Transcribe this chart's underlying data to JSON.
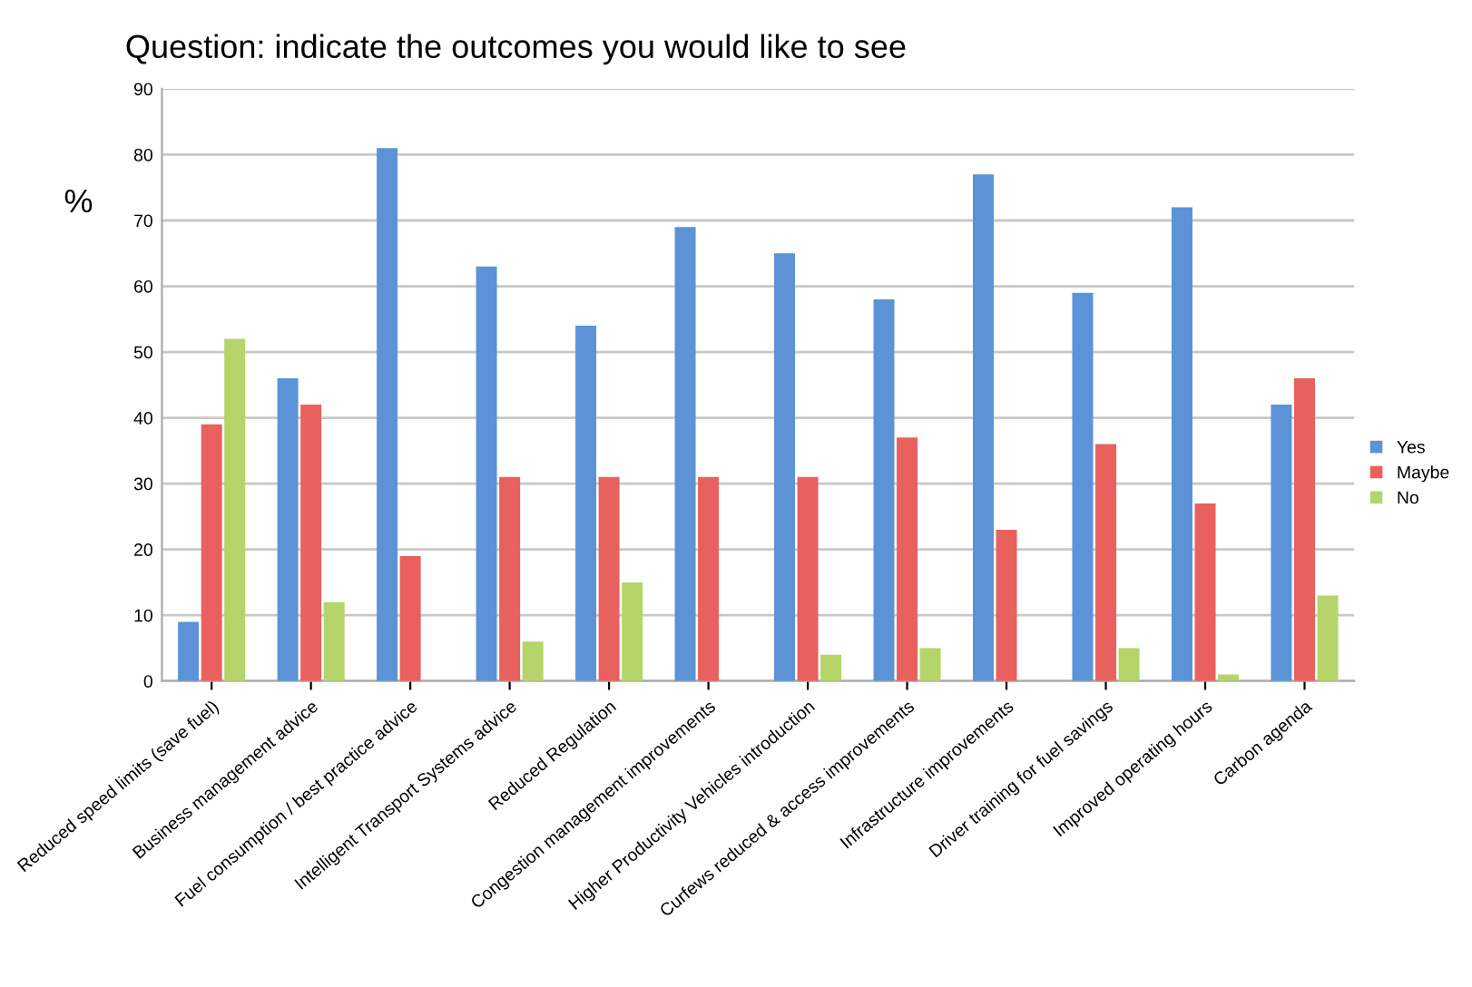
{
  "chart_data": {
    "type": "bar",
    "title": "Question: indicate the outcomes you would like to see",
    "ylabel": "%",
    "categories": [
      "Reduced speed limits (save fuel)",
      "Business management advice",
      "Fuel consumption / best practice advice",
      "Intelligent Transport Systems advice",
      "Reduced Regulation",
      "Congestion management improvements",
      "Higher Productivity Vehicles introduction",
      "Curfews reduced & access improvements",
      "Infrastructure improvements",
      "Driver training for fuel savings",
      "Improved operating hours",
      "Carbon agenda"
    ],
    "series": [
      {
        "name": "Yes",
        "color": "#5b93d6",
        "values": [
          9,
          46,
          81,
          63,
          54,
          69,
          65,
          58,
          77,
          59,
          72,
          42
        ]
      },
      {
        "name": "Maybe",
        "color": "#e8615f",
        "values": [
          39,
          42,
          19,
          31,
          31,
          31,
          31,
          37,
          23,
          36,
          27,
          46
        ]
      },
      {
        "name": "No",
        "color": "#b5d56a",
        "values": [
          52,
          12,
          0,
          6,
          15,
          0,
          4,
          5,
          0,
          5,
          1,
          13
        ]
      }
    ],
    "ylim": [
      0,
      90
    ],
    "yticks": [
      0,
      10,
      20,
      30,
      40,
      50,
      60,
      70,
      80,
      90
    ],
    "grid": "y",
    "legend": "right"
  }
}
